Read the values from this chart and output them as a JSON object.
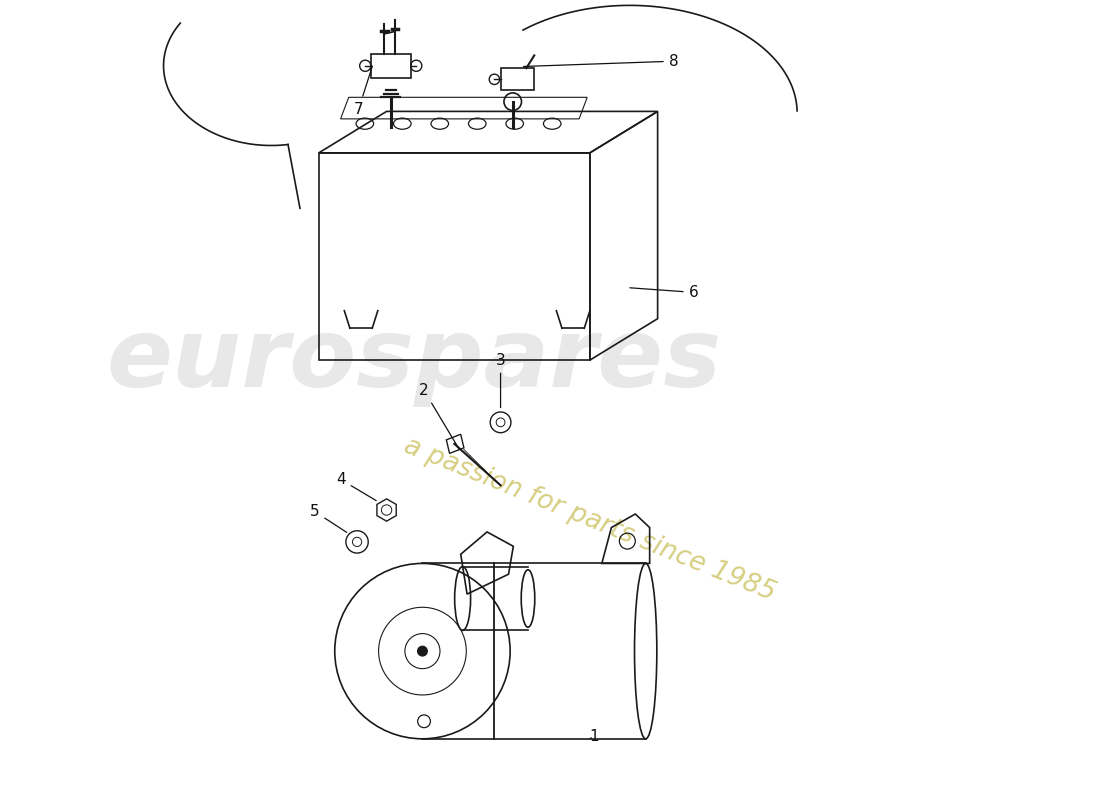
{
  "background_color": "#ffffff",
  "line_color": "#1a1a1a",
  "watermark_text1": "eurospares",
  "watermark_text2": "a passion for parts since 1985",
  "watermark_color1": "#cccccc",
  "watermark_color2": "#d4cc7a",
  "part_numbers": [
    "1",
    "2",
    "3",
    "4",
    "5",
    "6",
    "7",
    "8"
  ]
}
